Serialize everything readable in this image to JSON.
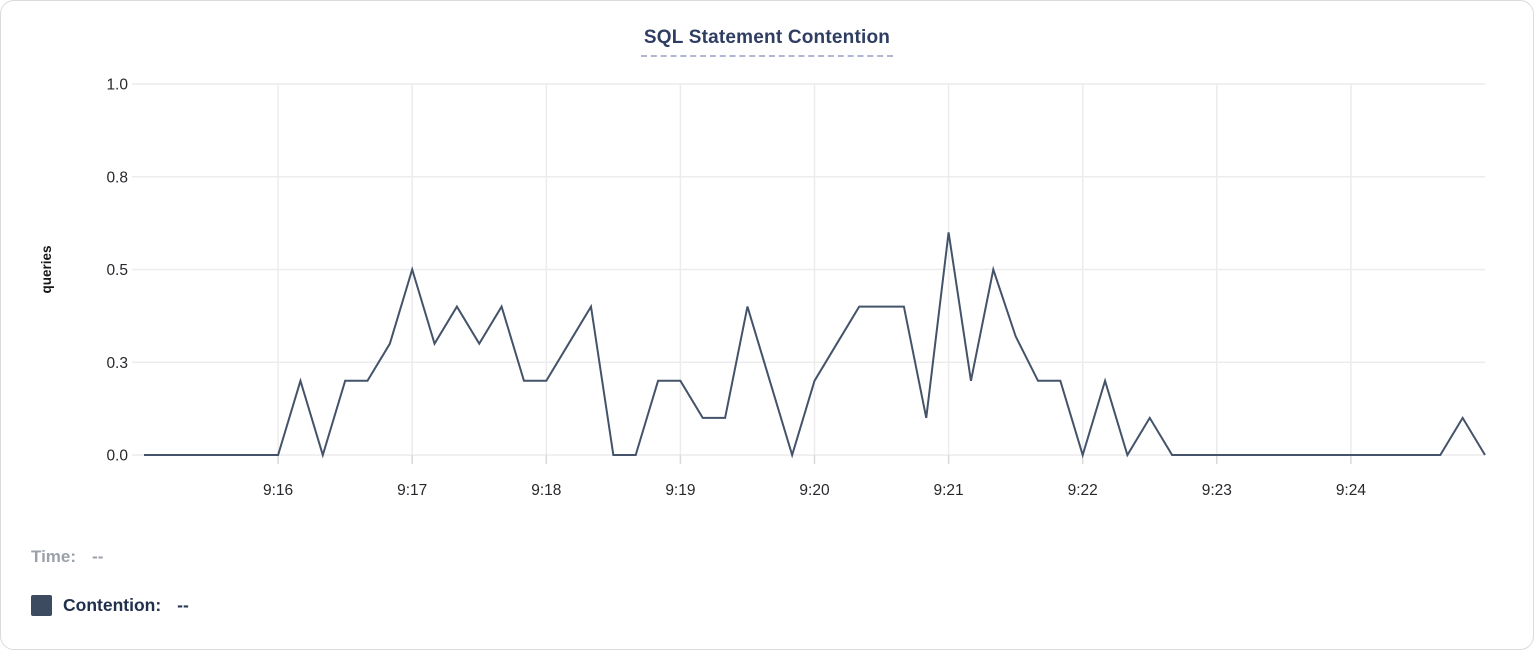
{
  "title": "SQL Statement Contention",
  "legend": {
    "time_label": "Time:",
    "time_value": "--",
    "series_label": "Contention:",
    "series_value": "--"
  },
  "colors": {
    "line": "#44536a",
    "swatch": "#3d4b61",
    "title": "#2e3d61",
    "title_underline": "#b0b5d4",
    "grid": "#ececee",
    "axis_tick_mark": "#d9d9d9",
    "tick_text": "#26282b",
    "axis_label_text": "#141618",
    "time_text": "#9ba1a8",
    "contention_text": "#21304d",
    "panel_border": "#d9dbde"
  },
  "chart_data": {
    "type": "line",
    "title": "SQL Statement Contention",
    "xlabel": "",
    "ylabel": "queries",
    "ylim": [
      0,
      1.0
    ],
    "grid": true,
    "legend_position": "bottom-left",
    "x_total_seconds": 600,
    "x_start_label": "9:15",
    "x_end_label": "9:25",
    "y_ticks": [
      {
        "v": 0.0,
        "label": "0.0"
      },
      {
        "v": 0.25,
        "label": "0.3"
      },
      {
        "v": 0.5,
        "label": "0.5"
      },
      {
        "v": 0.75,
        "label": "0.8"
      },
      {
        "v": 1.0,
        "label": "1.0"
      }
    ],
    "x_ticks": [
      {
        "s": 60,
        "label": "9:16"
      },
      {
        "s": 120,
        "label": "9:17"
      },
      {
        "s": 180,
        "label": "9:18"
      },
      {
        "s": 240,
        "label": "9:19"
      },
      {
        "s": 300,
        "label": "9:20"
      },
      {
        "s": 360,
        "label": "9:21"
      },
      {
        "s": 420,
        "label": "9:22"
      },
      {
        "s": 480,
        "label": "9:23"
      },
      {
        "s": 540,
        "label": "9:24"
      }
    ],
    "series": [
      {
        "name": "Contention",
        "unit": "queries",
        "start_time": "9:15:00",
        "interval_seconds": 10,
        "values": [
          0,
          0,
          0,
          0,
          0,
          0,
          0,
          0.2,
          0,
          0.2,
          0.2,
          0.3,
          0.5,
          0.3,
          0.4,
          0.3,
          0.4,
          0.2,
          0.2,
          0.3,
          0.4,
          0,
          0,
          0.2,
          0.2,
          0.1,
          0.1,
          0.4,
          0.2,
          0,
          0.2,
          0.3,
          0.4,
          0.4,
          0.4,
          0.1,
          0.6,
          0.2,
          0.5,
          0.32,
          0.2,
          0.2,
          0,
          0.2,
          0,
          0.1,
          0,
          0,
          0,
          0,
          0,
          0,
          0,
          0,
          0,
          0,
          0,
          0,
          0,
          0.1,
          0
        ]
      }
    ]
  }
}
